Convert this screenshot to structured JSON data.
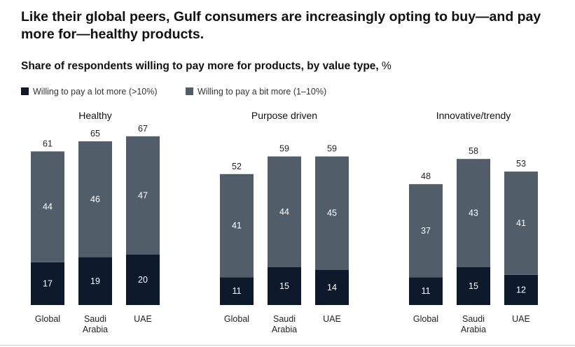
{
  "headline": "Like their global peers, Gulf consumers are increasingly opting to buy—and pay more for—healthy products.",
  "subtitle": "Share of respondents willing to pay more for products, by value type,",
  "subtitle_unit": "%",
  "colors": {
    "a_lot_more": "#0d1a2b",
    "a_bit_more": "#515e69"
  },
  "chart_data": {
    "type": "bar",
    "stacked": true,
    "title": "Share of respondents willing to pay more for products, by value type, %",
    "legend": [
      "Willing to pay a lot more (>10%)",
      "Willing to pay a bit more (1–10%)"
    ],
    "legend_placement": "top-left",
    "grid": false,
    "ylim": [
      0,
      70
    ],
    "panels": [
      {
        "title": "Healthy",
        "categories": [
          "Global",
          "Saudi Arabia",
          "UAE"
        ],
        "category_lines": [
          [
            "Global"
          ],
          [
            "Saudi",
            "Arabia"
          ],
          [
            "UAE"
          ]
        ],
        "totals": [
          61,
          65,
          67
        ],
        "series": [
          {
            "name": "Willing to pay a lot more (>10%)",
            "values": [
              17,
              19,
              20
            ]
          },
          {
            "name": "Willing to pay a bit more (1–10%)",
            "values": [
              44,
              46,
              47
            ]
          }
        ]
      },
      {
        "title": "Purpose driven",
        "categories": [
          "Global",
          "Saudi Arabia",
          "UAE"
        ],
        "category_lines": [
          [
            "Global"
          ],
          [
            "Saudi",
            "Arabia"
          ],
          [
            "UAE"
          ]
        ],
        "totals": [
          52,
          59,
          59
        ],
        "series": [
          {
            "name": "Willing to pay a lot more (>10%)",
            "values": [
              11,
              15,
              14
            ]
          },
          {
            "name": "Willing to pay a bit more (1–10%)",
            "values": [
              41,
              44,
              45
            ]
          }
        ]
      },
      {
        "title": "Innovative/trendy",
        "categories": [
          "Global",
          "Saudi Arabia",
          "UAE"
        ],
        "category_lines": [
          [
            "Global"
          ],
          [
            "Saudi",
            "Arabia"
          ],
          [
            "UAE"
          ]
        ],
        "totals": [
          48,
          58,
          53
        ],
        "series": [
          {
            "name": "Willing to pay a lot more (>10%)",
            "values": [
              11,
              15,
              12
            ]
          },
          {
            "name": "Willing to pay a bit more (1–10%)",
            "values": [
              37,
              43,
              41
            ]
          }
        ]
      }
    ]
  }
}
